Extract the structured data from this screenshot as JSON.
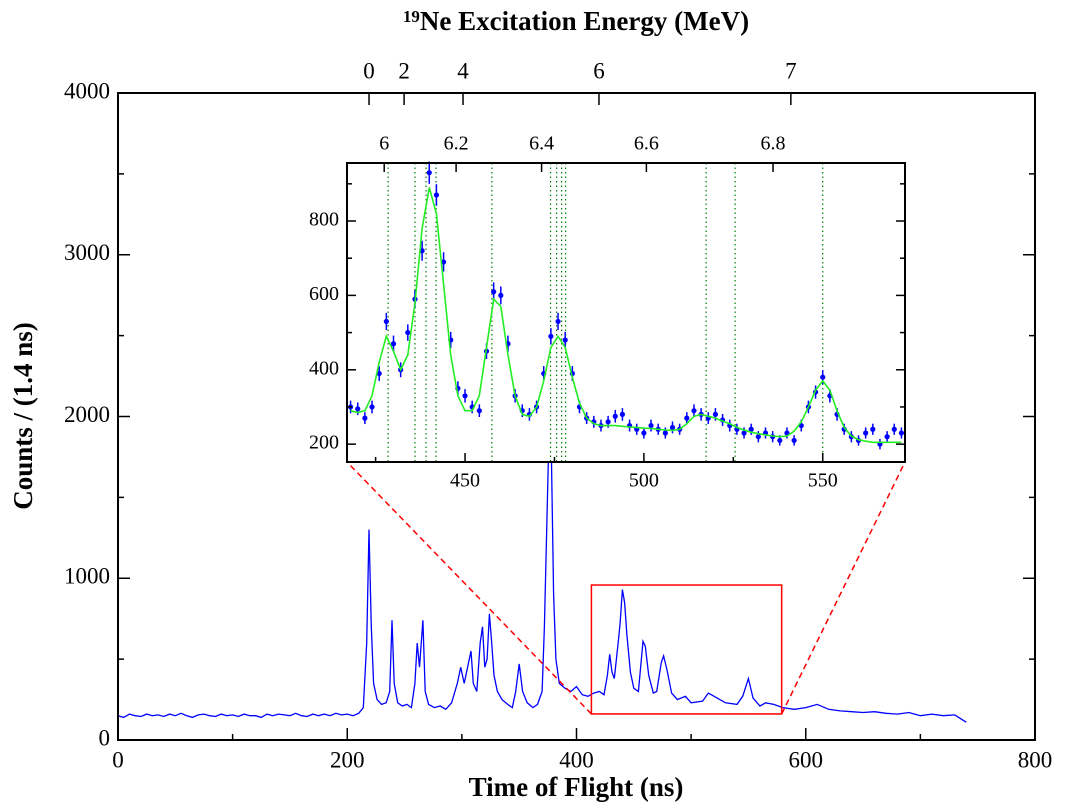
{
  "chart_data": [
    {
      "type": "line",
      "xlabel": "Time of Flight (ns)",
      "ylabel": "Counts / (1.4 ns)",
      "x2label_sup": "19",
      "x2label": "Ne Excitation Energy (MeV)",
      "x": [
        0,
        5,
        10,
        15,
        20,
        25,
        30,
        35,
        40,
        45,
        50,
        55,
        60,
        65,
        70,
        75,
        80,
        85,
        90,
        95,
        100,
        105,
        110,
        115,
        120,
        125,
        130,
        135,
        140,
        145,
        150,
        155,
        160,
        165,
        170,
        175,
        180,
        185,
        190,
        195,
        200,
        205,
        210,
        214,
        217,
        219,
        221,
        223,
        226,
        230,
        234,
        237,
        239,
        241,
        244,
        248,
        252,
        256,
        259,
        261,
        263,
        266,
        268,
        271,
        276,
        281,
        286,
        291,
        296,
        299,
        302,
        305,
        308,
        310,
        313,
        316,
        318,
        320,
        322,
        324,
        326,
        328,
        331,
        335,
        340,
        344,
        347,
        350,
        353,
        357,
        362,
        366,
        370,
        372,
        374,
        376,
        378,
        380,
        382,
        385,
        390,
        395,
        400,
        405,
        410,
        415,
        420,
        424,
        427,
        429,
        431,
        433,
        436,
        438,
        440,
        442,
        444,
        447,
        450,
        454,
        458,
        460,
        463,
        467,
        470,
        474,
        476,
        479,
        483,
        488,
        495,
        500,
        510,
        515,
        520,
        530,
        540,
        545,
        550,
        554,
        560,
        565,
        572,
        580,
        590,
        600,
        610,
        620,
        630,
        640,
        650,
        660,
        670,
        680,
        690,
        700,
        710,
        720,
        730,
        740
      ],
      "series": [
        {
          "color": "#0000ff",
          "values": [
            150,
            140,
            160,
            150,
            145,
            160,
            150,
            155,
            145,
            160,
            150,
            165,
            150,
            140,
            155,
            160,
            150,
            145,
            160,
            150,
            155,
            145,
            160,
            150,
            150,
            140,
            160,
            150,
            160,
            155,
            150,
            165,
            150,
            145,
            160,
            150,
            160,
            150,
            165,
            155,
            160,
            150,
            165,
            200,
            600,
            1300,
            700,
            350,
            250,
            220,
            230,
            300,
            740,
            350,
            230,
            210,
            220,
            200,
            350,
            600,
            450,
            740,
            300,
            220,
            200,
            210,
            190,
            230,
            350,
            450,
            350,
            450,
            550,
            350,
            300,
            600,
            700,
            450,
            500,
            780,
            600,
            400,
            300,
            250,
            220,
            200,
            300,
            470,
            300,
            230,
            200,
            220,
            300,
            700,
            1300,
            1900,
            1800,
            900,
            500,
            350,
            320,
            300,
            330,
            280,
            270,
            290,
            300,
            280,
            400,
            530,
            420,
            380,
            580,
            720,
            930,
            850,
            650,
            420,
            320,
            300,
            610,
            580,
            400,
            290,
            300,
            480,
            520,
            430,
            290,
            250,
            270,
            230,
            240,
            290,
            270,
            230,
            220,
            270,
            380,
            260,
            210,
            230,
            220,
            200,
            190,
            200,
            220,
            190,
            180,
            175,
            170,
            175,
            165,
            160,
            170,
            150,
            160,
            150,
            155,
            110
          ]
        }
      ],
      "xlim": [
        0,
        800
      ],
      "ylim": [
        0,
        4000
      ],
      "xticks": [
        0,
        200,
        400,
        600,
        800
      ],
      "yticks": [
        0,
        1000,
        2000,
        3000,
        4000
      ],
      "xminor": [
        100,
        300,
        500,
        700
      ],
      "yminor": [
        500,
        1500,
        2500,
        3500
      ],
      "x2ticks": [
        0,
        2,
        4,
        6,
        7
      ],
      "x2tick_x": [
        219,
        249.6,
        301,
        419.6,
        587
      ],
      "zoom_box": {
        "x": [
          413,
          579
        ],
        "y": [
          161,
          958
        ],
        "color": "#ff0000"
      }
    },
    {
      "type": "scatter",
      "x": [
        418,
        420,
        422,
        424,
        426,
        428,
        430,
        432,
        434,
        436,
        438,
        440,
        442,
        444,
        446,
        448,
        450,
        452,
        454,
        456,
        458,
        460,
        462,
        464,
        466,
        468,
        470,
        472,
        474,
        476,
        478,
        480,
        482,
        484,
        486,
        488,
        490,
        492,
        494,
        496,
        498,
        500,
        502,
        504,
        506,
        508,
        510,
        512,
        514,
        516,
        518,
        520,
        522,
        524,
        526,
        528,
        530,
        532,
        534,
        536,
        538,
        540,
        542,
        544,
        546,
        548,
        550,
        552,
        554,
        556,
        558,
        560,
        562,
        564,
        566,
        568,
        570,
        572
      ],
      "series": [
        {
          "color": "#0000ff",
          "values": [
            300,
            295,
            270,
            300,
            390,
            530,
            470,
            400,
            500,
            590,
            720,
            930,
            870,
            690,
            480,
            350,
            330,
            300,
            290,
            450,
            610,
            600,
            470,
            330,
            290,
            280,
            300,
            390,
            490,
            530,
            480,
            390,
            300,
            270,
            260,
            250,
            260,
            275,
            280,
            250,
            240,
            230,
            250,
            240,
            230,
            245,
            240,
            270,
            290,
            280,
            270,
            280,
            265,
            250,
            240,
            230,
            240,
            220,
            230,
            220,
            210,
            230,
            210,
            250,
            300,
            340,
            380,
            330,
            280,
            240,
            220,
            210,
            230,
            240,
            200,
            220,
            240,
            230
          ],
          "errors": [
            17,
            17,
            16,
            17,
            20,
            23,
            22,
            20,
            22,
            24,
            27,
            30,
            29,
            26,
            22,
            19,
            18,
            17,
            17,
            21,
            25,
            24,
            22,
            18,
            17,
            17,
            17,
            20,
            22,
            23,
            22,
            20,
            17,
            16,
            16,
            16,
            16,
            17,
            17,
            16,
            15,
            15,
            16,
            15,
            15,
            16,
            15,
            16,
            17,
            17,
            16,
            17,
            16,
            16,
            15,
            15,
            15,
            15,
            15,
            15,
            14,
            15,
            14,
            16,
            17,
            18,
            19,
            18,
            17,
            15,
            15,
            14,
            15,
            15,
            14,
            15,
            15,
            15
          ]
        },
        {
          "type": "line",
          "color": "#22ee22",
          "values": [
            290,
            285,
            290,
            330,
            420,
            490,
            450,
            400,
            440,
            580,
            780,
            890,
            820,
            630,
            440,
            330,
            290,
            290,
            330,
            460,
            590,
            570,
            440,
            330,
            280,
            275,
            300,
            370,
            460,
            490,
            460,
            380,
            310,
            270,
            255,
            250,
            250,
            250,
            248,
            246,
            245,
            243,
            242,
            240,
            238,
            237,
            240,
            255,
            275,
            280,
            275,
            270,
            262,
            255,
            245,
            238,
            232,
            228,
            225,
            222,
            220,
            222,
            235,
            260,
            300,
            345,
            370,
            345,
            290,
            245,
            222,
            212,
            208,
            205,
            205,
            205,
            205,
            205
          ]
        }
      ],
      "xlim": [
        417,
        573
      ],
      "ylim": [
        152,
        956
      ],
      "xticks": [
        450,
        500,
        550
      ],
      "yticks": [
        200,
        400,
        600,
        800
      ],
      "xminor": [
        425,
        475,
        525
      ],
      "yminor": [
        300,
        500,
        700,
        900
      ],
      "x2ticks": [
        6,
        6.2,
        6.4,
        6.6,
        6.8
      ],
      "x2tick_x": [
        427.4,
        447.5,
        471.4,
        500.7,
        536.1
      ],
      "levels": [
        428.5,
        436,
        439.1,
        441.9,
        457.5,
        473.9,
        475.6,
        477,
        478.1,
        517.4,
        525.5,
        550
      ],
      "level_color": "#008000"
    }
  ]
}
